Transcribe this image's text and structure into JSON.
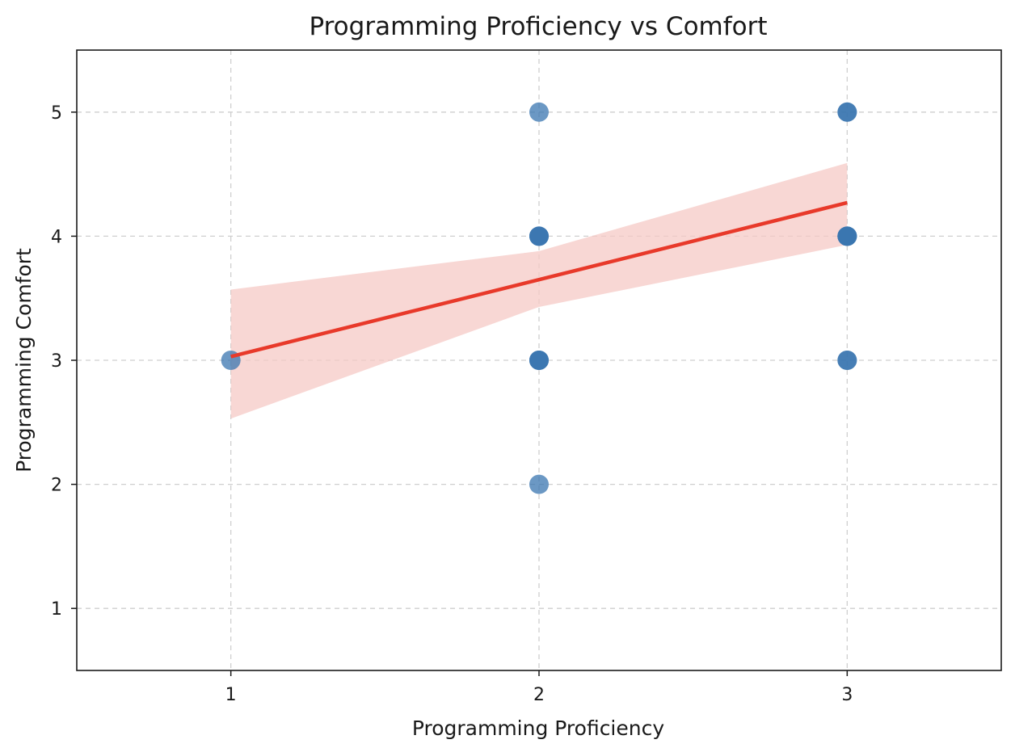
{
  "chart_data": {
    "type": "scatter",
    "title": "Programming Proficiency vs Comfort",
    "xlabel": "Programming Proficiency",
    "ylabel": "Programming Comfort",
    "xlim": [
      0.5,
      3.5
    ],
    "ylim": [
      0.5,
      5.5
    ],
    "xticks": [
      1,
      2,
      3
    ],
    "yticks": [
      1,
      2,
      3,
      4,
      5
    ],
    "grid": true,
    "points": [
      {
        "x": 1,
        "y": 3
      },
      {
        "x": 2,
        "y": 5
      },
      {
        "x": 2,
        "y": 4
      },
      {
        "x": 2,
        "y": 4
      },
      {
        "x": 2,
        "y": 4
      },
      {
        "x": 2,
        "y": 3
      },
      {
        "x": 2,
        "y": 3
      },
      {
        "x": 2,
        "y": 3
      },
      {
        "x": 2,
        "y": 2
      },
      {
        "x": 3,
        "y": 5
      },
      {
        "x": 3,
        "y": 5
      },
      {
        "x": 3,
        "y": 4
      },
      {
        "x": 3,
        "y": 4
      },
      {
        "x": 3,
        "y": 4
      },
      {
        "x": 3,
        "y": 4
      },
      {
        "x": 3,
        "y": 3
      },
      {
        "x": 3,
        "y": 3
      }
    ],
    "regression": {
      "x": [
        1,
        2,
        3
      ],
      "y": [
        3.03,
        3.65,
        4.27
      ],
      "ci_lower": [
        2.53,
        3.43,
        3.93
      ],
      "ci_upper": [
        3.57,
        3.88,
        4.59
      ]
    },
    "colors": {
      "points": "#3a75b0",
      "line": "#e8392a",
      "band": "#f6c9c6"
    }
  }
}
